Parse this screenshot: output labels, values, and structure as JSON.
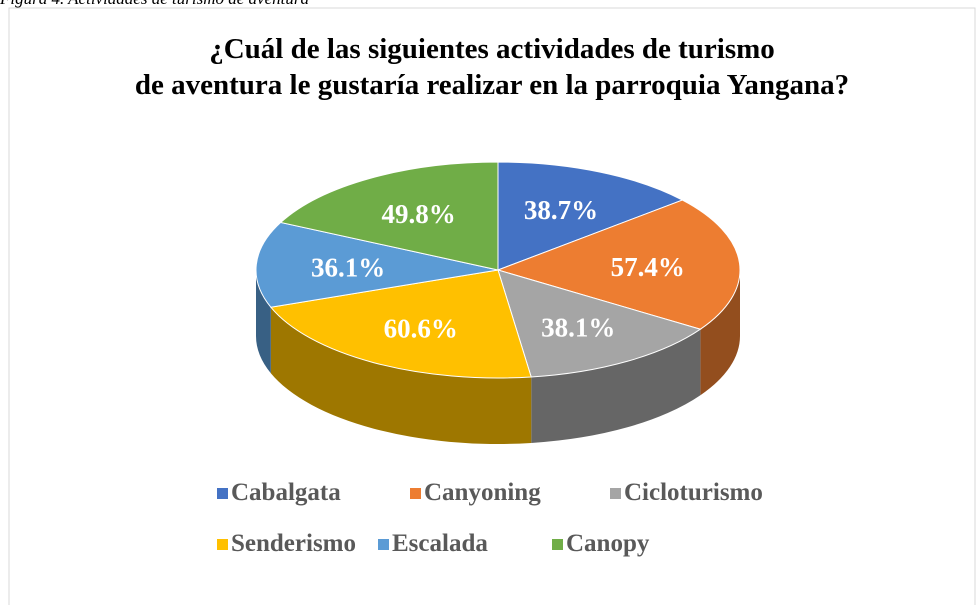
{
  "caption": "Figura 4. Actividades de turismo de aventura",
  "chart_data": {
    "type": "pie3d",
    "title": "¿Cuál de las siguientes actividades de turismo de aventura le gustaría realizar en la parroquia Yangana?",
    "categories": [
      "Cabalgata",
      "Canyoning",
      "Cicloturismo",
      "Senderismo",
      "Escalada",
      "Canopy"
    ],
    "values": [
      38.7,
      57.4,
      38.1,
      60.6,
      36.1,
      49.8
    ],
    "value_labels": [
      "38.7%",
      "57.4%",
      "38.1%",
      "60.6%",
      "36.1%",
      "49.8%"
    ],
    "colors": [
      "#4472c4",
      "#ed7d31",
      "#a5a5a5",
      "#ffc000",
      "#5b9bd5",
      "#70ad47"
    ],
    "legend": "bottom"
  }
}
